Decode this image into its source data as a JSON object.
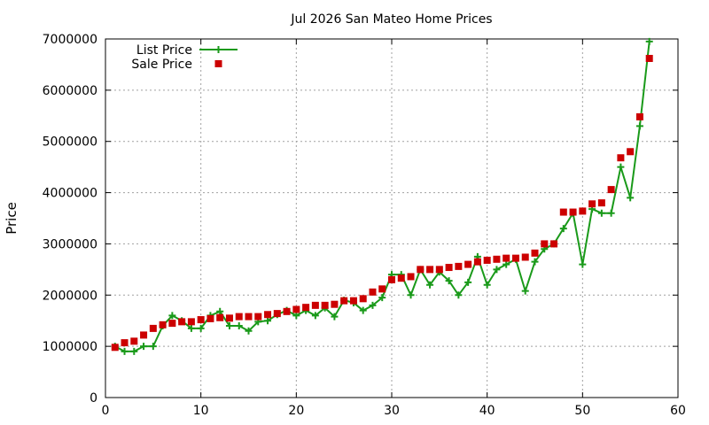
{
  "chart_data": {
    "type": "line",
    "title": "Jul 2026 San Mateo Home Prices",
    "xlabel": "",
    "ylabel": "Price",
    "xlim": [
      0,
      60
    ],
    "ylim": [
      0,
      7000000
    ],
    "xticks": [
      0,
      10,
      20,
      30,
      40,
      50,
      60
    ],
    "yticks": [
      0,
      1000000,
      2000000,
      3000000,
      4000000,
      5000000,
      6000000,
      7000000
    ],
    "grid": true,
    "legend_position": "top-left",
    "series": [
      {
        "name": "List Price",
        "style": "lines+points",
        "marker": "plus",
        "color": "#1a9a1a",
        "x": [
          1,
          2,
          3,
          4,
          5,
          6,
          7,
          8,
          9,
          10,
          11,
          12,
          13,
          14,
          15,
          16,
          17,
          18,
          19,
          20,
          21,
          22,
          23,
          24,
          25,
          26,
          27,
          28,
          29,
          30,
          31,
          32,
          33,
          34,
          35,
          36,
          37,
          38,
          39,
          40,
          41,
          42,
          43,
          44,
          45,
          46,
          47,
          48,
          49,
          50,
          51,
          52,
          53,
          54,
          55,
          56,
          57
        ],
        "y": [
          1000000,
          900000,
          900000,
          1000000,
          1000000,
          1400000,
          1600000,
          1500000,
          1350000,
          1350000,
          1600000,
          1680000,
          1400000,
          1400000,
          1300000,
          1480000,
          1500000,
          1620000,
          1700000,
          1600000,
          1700000,
          1600000,
          1750000,
          1580000,
          1900000,
          1850000,
          1700000,
          1800000,
          1950000,
          2400000,
          2400000,
          2000000,
          2500000,
          2200000,
          2450000,
          2280000,
          2000000,
          2250000,
          2750000,
          2200000,
          2500000,
          2600000,
          2700000,
          2080000,
          2650000,
          2900000,
          3000000,
          3300000,
          3600000,
          2600000,
          3680000,
          3600000,
          3600000,
          4500000,
          3900000,
          5300000,
          6950000
        ]
      },
      {
        "name": "Sale Price",
        "style": "points",
        "marker": "square",
        "color": "#cc0000",
        "x": [
          1,
          2,
          3,
          4,
          5,
          6,
          7,
          8,
          9,
          10,
          11,
          12,
          13,
          14,
          15,
          16,
          17,
          18,
          19,
          20,
          21,
          22,
          23,
          24,
          25,
          26,
          27,
          28,
          29,
          30,
          31,
          32,
          33,
          34,
          35,
          36,
          37,
          38,
          39,
          40,
          41,
          42,
          43,
          44,
          45,
          46,
          47,
          48,
          49,
          50,
          51,
          52,
          53,
          54,
          55,
          56,
          57
        ],
        "y": [
          980000,
          1070000,
          1100000,
          1220000,
          1350000,
          1420000,
          1450000,
          1480000,
          1480000,
          1520000,
          1540000,
          1560000,
          1550000,
          1580000,
          1580000,
          1580000,
          1620000,
          1640000,
          1680000,
          1720000,
          1760000,
          1800000,
          1800000,
          1820000,
          1890000,
          1890000,
          1930000,
          2060000,
          2120000,
          2300000,
          2330000,
          2360000,
          2500000,
          2500000,
          2500000,
          2540000,
          2560000,
          2600000,
          2650000,
          2680000,
          2700000,
          2720000,
          2720000,
          2740000,
          2820000,
          3000000,
          3000000,
          3620000,
          3620000,
          3640000,
          3780000,
          3800000,
          4060000,
          4680000,
          4800000,
          5480000,
          6620000
        ]
      }
    ]
  }
}
